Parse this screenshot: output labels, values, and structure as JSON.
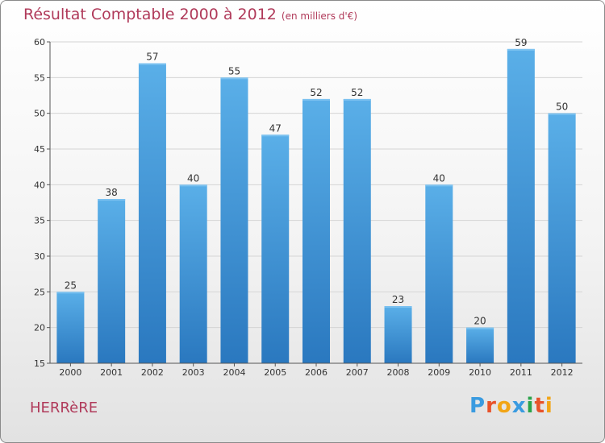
{
  "chart_data": {
    "type": "bar",
    "title": "Résultat Comptable 2000 à 2012",
    "subtitle": "(en milliers d'€)",
    "categories": [
      "2000",
      "2001",
      "2002",
      "2003",
      "2004",
      "2005",
      "2006",
      "2007",
      "2008",
      "2009",
      "2010",
      "2011",
      "2012"
    ],
    "values": [
      25,
      38,
      57,
      40,
      55,
      47,
      52,
      52,
      23,
      40,
      20,
      59,
      50
    ],
    "yticks": [
      15,
      20,
      25,
      30,
      35,
      40,
      45,
      50,
      55,
      60
    ],
    "ylim": [
      15,
      60
    ],
    "grid": true,
    "bar_color": "#3d8fd6",
    "xlabel": "",
    "ylabel": ""
  },
  "place_name": "HERRèRE",
  "logo": {
    "letters": [
      "P",
      "r",
      "o",
      "x",
      "i",
      "t",
      "i"
    ],
    "colors": [
      "#3a9be0",
      "#e8522a",
      "#f2a516",
      "#3a9be0",
      "#2aa34a",
      "#e8522a",
      "#f2a516"
    ]
  }
}
